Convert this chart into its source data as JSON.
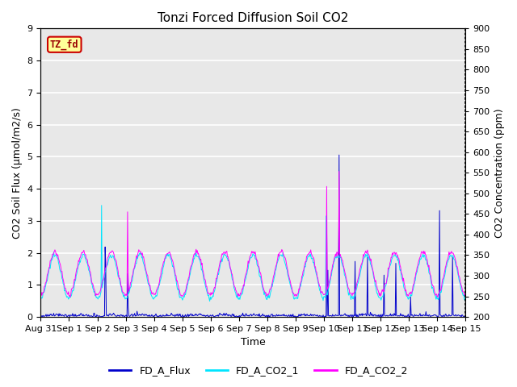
{
  "title": "Tonzi Forced Diffusion Soil CO2",
  "xlabel": "Time",
  "ylabel_left": "CO2 Soil Flux (μmol/m2/s)",
  "ylabel_right": "CO2 Concentration (ppm)",
  "ylim_left": [
    0.0,
    9.0
  ],
  "ylim_right": [
    200,
    900
  ],
  "yticks_left": [
    0.0,
    1.0,
    2.0,
    3.0,
    4.0,
    5.0,
    6.0,
    7.0,
    8.0,
    9.0
  ],
  "yticks_right": [
    200,
    250,
    300,
    350,
    400,
    450,
    500,
    550,
    600,
    650,
    700,
    750,
    800,
    850,
    900
  ],
  "xtick_labels": [
    "Aug 31",
    "Sep 1",
    "Sep 2",
    "Sep 3",
    "Sep 4",
    "Sep 5",
    "Sep 6",
    "Sep 7",
    "Sep 8",
    "Sep 9",
    "Sep 10",
    "Sep 11",
    "Sep 12",
    "Sep 13",
    "Sep 14",
    "Sep 15"
  ],
  "color_flux": "#0000cc",
  "color_co2_1": "#00e5ff",
  "color_co2_2": "#ff00ff",
  "legend_labels": [
    "FD_A_Flux",
    "FD_A_CO2_1",
    "FD_A_CO2_2"
  ],
  "watermark_text": "TZ_fd",
  "watermark_bg": "#ffff99",
  "watermark_border": "#cc0000",
  "plot_bg": "#e8e8e8",
  "grid_color": "#ffffff",
  "title_fontsize": 11,
  "axis_fontsize": 9,
  "tick_fontsize": 8,
  "legend_fontsize": 9
}
